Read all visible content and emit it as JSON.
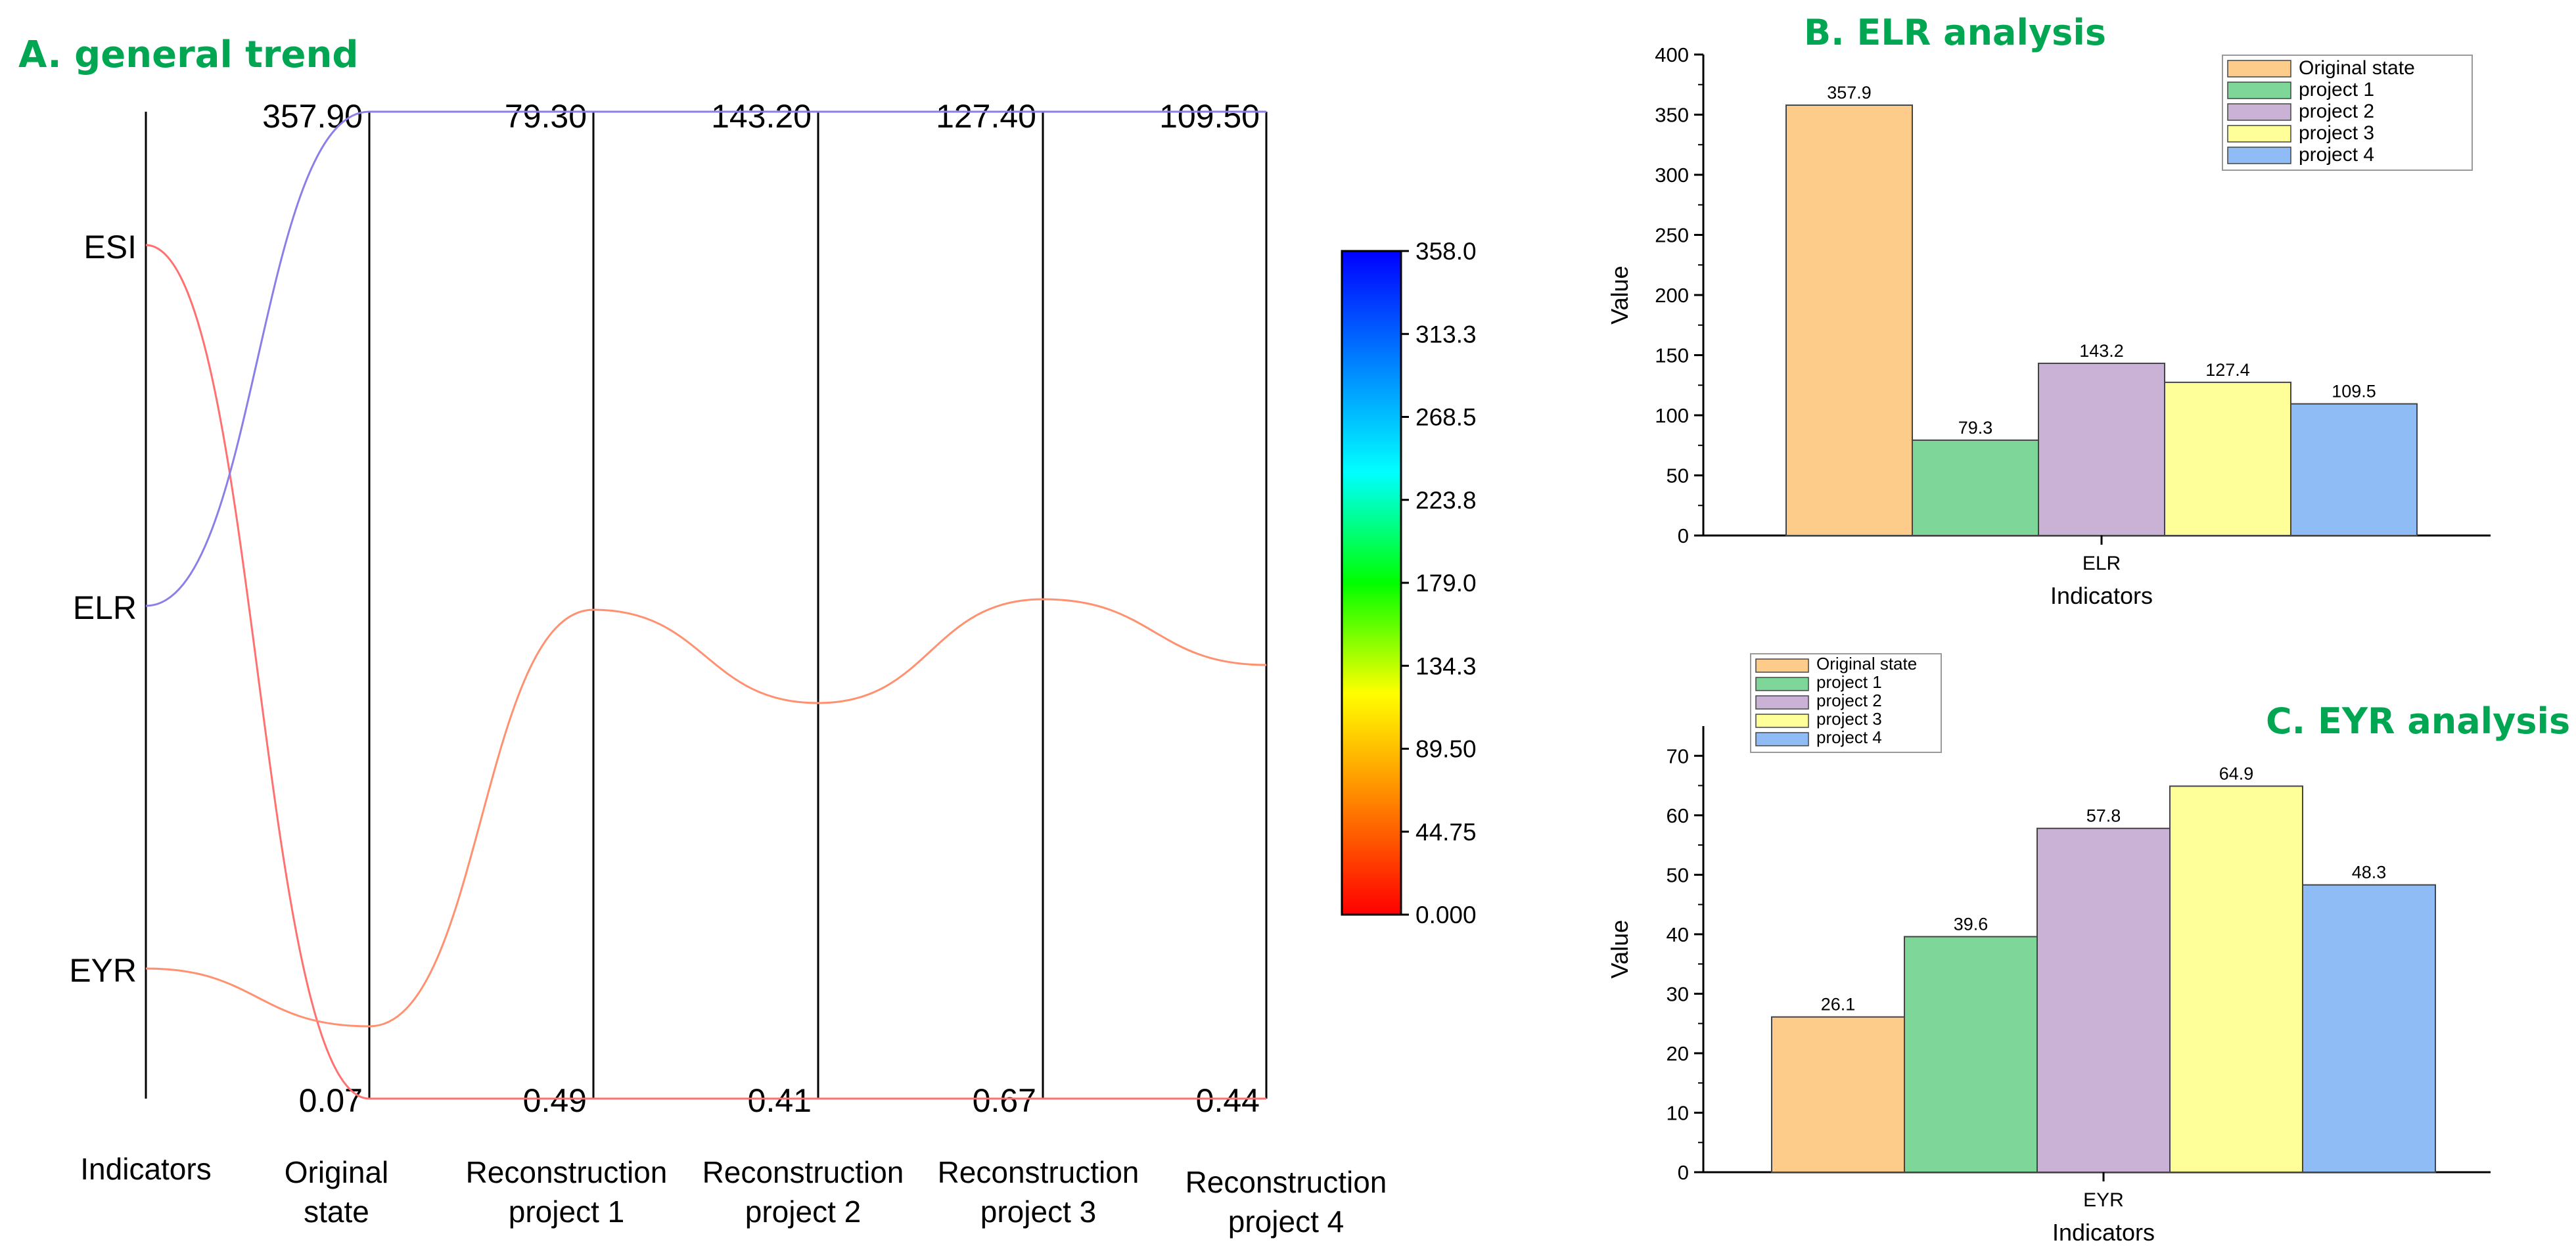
{
  "chart_data": [
    {
      "id": "A",
      "type": "parallel_coordinates",
      "title": "A. general trend",
      "axis_labels": [
        "Indicators",
        "Original state",
        "Reconstruction project 1",
        "Reconstruction project 2",
        "Reconstruction project 3",
        "Reconstruction project 4"
      ],
      "axis_label_lines": [
        [
          "Indicators"
        ],
        [
          "Original",
          "state"
        ],
        [
          "Reconstruction",
          "project 1"
        ],
        [
          "Reconstruction",
          "project 2"
        ],
        [
          "Reconstruction",
          "project 3"
        ],
        [
          "Reconstruction",
          "project 4"
        ]
      ],
      "indicator_axis_categories": [
        "ESI",
        "ELR",
        "EYR"
      ],
      "axis_max_labels": [
        "357.90",
        "79.30",
        "143.20",
        "127.40",
        "109.50"
      ],
      "axis_min_labels": [
        "0.07",
        "0.49",
        "0.41",
        "0.67",
        "0.44"
      ],
      "series": [
        {
          "name": "ESI",
          "values": [
            0.07,
            0.49,
            0.41,
            0.67,
            0.44
          ]
        },
        {
          "name": "ELR",
          "values": [
            357.9,
            79.3,
            143.2,
            127.4,
            109.5
          ]
        },
        {
          "name": "EYR",
          "values": [
            26.1,
            39.6,
            57.8,
            64.9,
            48.3
          ]
        }
      ],
      "colorbar": {
        "range": [
          0,
          358
        ],
        "tick_labels": [
          "358.0",
          "313.3",
          "268.5",
          "223.8",
          "179.0",
          "134.3",
          "89.50",
          "44.75",
          "0.000"
        ],
        "colors": [
          "#0000ff",
          "#0080ff",
          "#00ffff",
          "#00ff00",
          "#ffff00",
          "#ff8000",
          "#ff0000"
        ]
      }
    },
    {
      "id": "B",
      "type": "bar",
      "title": "B. ELR analysis",
      "xlabel": "Indicators",
      "ylabel": "Value",
      "categories": [
        "ELR"
      ],
      "ylim": [
        0,
        400
      ],
      "yticks": [
        "0",
        "50",
        "100",
        "150",
        "200",
        "250",
        "300",
        "350",
        "400"
      ],
      "series": [
        {
          "name": "Original state",
          "value": 357.9,
          "label": "357.9",
          "color": "#fdcc8a"
        },
        {
          "name": "project 1",
          "value": 79.3,
          "label": "79.3",
          "color": "#7fd699"
        },
        {
          "name": "project 2",
          "value": 143.2,
          "label": "143.2",
          "color": "#cab2d6"
        },
        {
          "name": "project 3",
          "value": 127.4,
          "label": "127.4",
          "color": "#ffff99"
        },
        {
          "name": "project 4",
          "value": 109.5,
          "label": "109.5",
          "color": "#8fbcf5"
        }
      ],
      "legend_position": "top-right"
    },
    {
      "id": "C",
      "type": "bar",
      "title": "C. EYR analysis",
      "xlabel": "Indicators",
      "ylabel": "Value",
      "categories": [
        "EYR"
      ],
      "ylim": [
        0,
        75
      ],
      "yticks": [
        "0",
        "10",
        "20",
        "30",
        "40",
        "50",
        "60",
        "70"
      ],
      "series": [
        {
          "name": "Original state",
          "value": 26.1,
          "label": "26.1",
          "color": "#fdcc8a"
        },
        {
          "name": "project 1",
          "value": 39.6,
          "label": "39.6",
          "color": "#7fd699"
        },
        {
          "name": "project 2",
          "value": 57.8,
          "label": "57.8",
          "color": "#cab2d6"
        },
        {
          "name": "project 3",
          "value": 64.9,
          "label": "64.9",
          "color": "#ffff99"
        },
        {
          "name": "project 4",
          "value": 48.3,
          "label": "48.3",
          "color": "#8fbcf5"
        }
      ],
      "legend_position": "top-left"
    }
  ]
}
